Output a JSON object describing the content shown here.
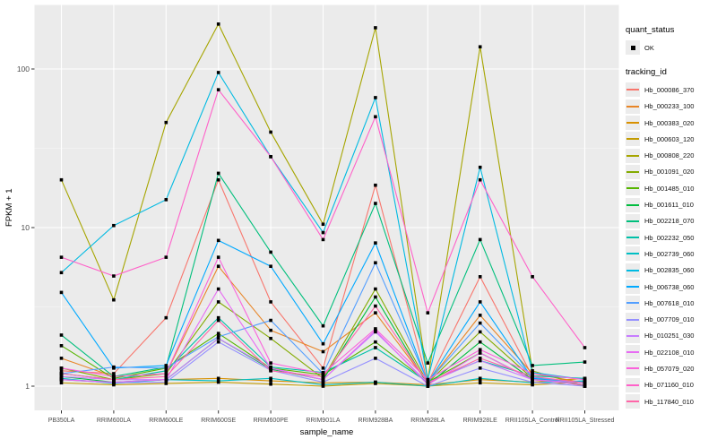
{
  "legend": {
    "quant_title": "quant_status",
    "quant_items": [
      {
        "label": "OK"
      }
    ],
    "tracking_title": "tracking_id"
  },
  "chart_data": {
    "type": "line",
    "title": "",
    "xlabel": "sample_name",
    "ylabel": "FPKM + 1",
    "y_scale": "log10",
    "y_ticks": [
      1,
      10,
      100
    ],
    "y_minor_ticks": [
      3.1623,
      31.623
    ],
    "ylim": [
      0.7,
      260
    ],
    "grid": true,
    "legend_position": "right",
    "panel_bg": "#EBEBEB",
    "grid_major_color": "#FFFFFF",
    "grid_minor_color": "#F5F5F5",
    "point_color": "#000000",
    "axis_text_color": "#4D4D4D",
    "categories": [
      "PB350LA",
      "RRIM600LA",
      "RRIM600LE",
      "RRIM600SE",
      "RRIM600PE",
      "RRIM901LA",
      "RRIM928BA",
      "RRIM928LA",
      "RRIM928LE",
      "RRII105LA_Control",
      "RRII105LA_Stressed"
    ],
    "series": [
      {
        "name": "Hb_000086_370",
        "color": "#F8766D",
        "values": [
          1.25,
          1.2,
          2.7,
          20,
          3.4,
          1.3,
          18.5,
          1.05,
          4.9,
          1.15,
          1.0
        ]
      },
      {
        "name": "Hb_000233_100",
        "color": "#E88526",
        "values": [
          1.5,
          1.15,
          1.2,
          5.7,
          2.25,
          1.65,
          2.9,
          1.05,
          2.8,
          1.2,
          1.05
        ]
      },
      {
        "name": "Hb_000383_020",
        "color": "#D89000",
        "values": [
          1.1,
          1.05,
          1.1,
          1.12,
          1.08,
          1.05,
          1.06,
          1.02,
          1.1,
          1.06,
          1.12
        ]
      },
      {
        "name": "Hb_000603_120",
        "color": "#C39B00",
        "values": [
          1.05,
          1.02,
          1.04,
          1.06,
          1.03,
          1.0,
          1.04,
          1.0,
          1.05,
          1.02,
          1.06
        ]
      },
      {
        "name": "Hb_000808_220",
        "color": "#A6A500",
        "values": [
          20,
          3.5,
          46,
          192,
          40,
          10.5,
          182,
          1.1,
          138,
          1.25,
          1.0
        ]
      },
      {
        "name": "Hb_001091_020",
        "color": "#83AB00",
        "values": [
          1.3,
          1.1,
          1.2,
          3.4,
          2.0,
          1.12,
          4.1,
          1.05,
          2.2,
          1.12,
          1.02
        ]
      },
      {
        "name": "Hb_001485_010",
        "color": "#56B500",
        "values": [
          1.8,
          1.12,
          1.3,
          2.15,
          1.3,
          1.18,
          1.9,
          1.06,
          1.62,
          1.1,
          1.06
        ]
      },
      {
        "name": "Hb_001611_010",
        "color": "#00BC3E",
        "values": [
          1.15,
          1.06,
          1.1,
          2.0,
          1.28,
          1.1,
          3.65,
          1.02,
          1.9,
          1.1,
          1.02
        ]
      },
      {
        "name": "Hb_002218_070",
        "color": "#00BF7C",
        "values": [
          2.1,
          1.15,
          1.32,
          22,
          7.0,
          2.4,
          14.2,
          1.4,
          8.4,
          1.35,
          1.42
        ]
      },
      {
        "name": "Hb_002232_050",
        "color": "#00C0A8",
        "values": [
          1.2,
          1.1,
          1.25,
          2.7,
          1.32,
          1.22,
          1.75,
          1.06,
          1.45,
          1.16,
          1.12
        ]
      },
      {
        "name": "Hb_002739_060",
        "color": "#00BFC4",
        "values": [
          1.12,
          1.04,
          1.1,
          1.08,
          1.12,
          1.02,
          1.06,
          1.0,
          1.12,
          1.05,
          1.08
        ]
      },
      {
        "name": "Hb_002835_060",
        "color": "#00BAE2",
        "values": [
          5.2,
          10.3,
          15,
          95,
          28,
          9.3,
          66,
          1.1,
          24,
          1.22,
          1.1
        ]
      },
      {
        "name": "Hb_006738_060",
        "color": "#00A9FF",
        "values": [
          3.9,
          1.3,
          1.35,
          8.3,
          5.7,
          1.85,
          8.0,
          1.05,
          3.4,
          1.12,
          1.06
        ]
      },
      {
        "name": "Hb_007618_010",
        "color": "#529EFF",
        "values": [
          1.2,
          1.32,
          1.3,
          2.05,
          2.6,
          1.2,
          6.0,
          1.06,
          2.5,
          1.14,
          1.05
        ]
      },
      {
        "name": "Hb_007709_010",
        "color": "#9590FF",
        "values": [
          1.1,
          1.05,
          1.06,
          1.9,
          1.26,
          1.06,
          1.5,
          1.0,
          1.3,
          1.06,
          1.0
        ]
      },
      {
        "name": "Hb_010251_030",
        "color": "#C77CFF",
        "values": [
          1.15,
          1.1,
          1.1,
          2.0,
          1.3,
          1.1,
          2.2,
          1.05,
          1.45,
          1.1,
          1.05
        ]
      },
      {
        "name": "Hb_022108_010",
        "color": "#E76BF3",
        "values": [
          1.1,
          1.06,
          1.1,
          4.1,
          1.3,
          1.1,
          2.25,
          1.02,
          1.62,
          1.1,
          1.02
        ]
      },
      {
        "name": "Hb_057079_020",
        "color": "#FA62DB",
        "values": [
          1.3,
          1.15,
          1.2,
          6.5,
          1.4,
          1.2,
          2.3,
          1.1,
          1.7,
          1.2,
          1.1
        ]
      },
      {
        "name": "Hb_071160_010",
        "color": "#FF61C9",
        "values": [
          6.5,
          4.95,
          6.5,
          74,
          28,
          8.4,
          50,
          2.9,
          20,
          4.9,
          1.75
        ]
      },
      {
        "name": "Hb_117840_010",
        "color": "#FF66A8",
        "values": [
          1.2,
          1.1,
          1.15,
          2.6,
          1.25,
          1.15,
          3.2,
          1.05,
          1.5,
          1.15,
          1.05
        ]
      }
    ]
  }
}
